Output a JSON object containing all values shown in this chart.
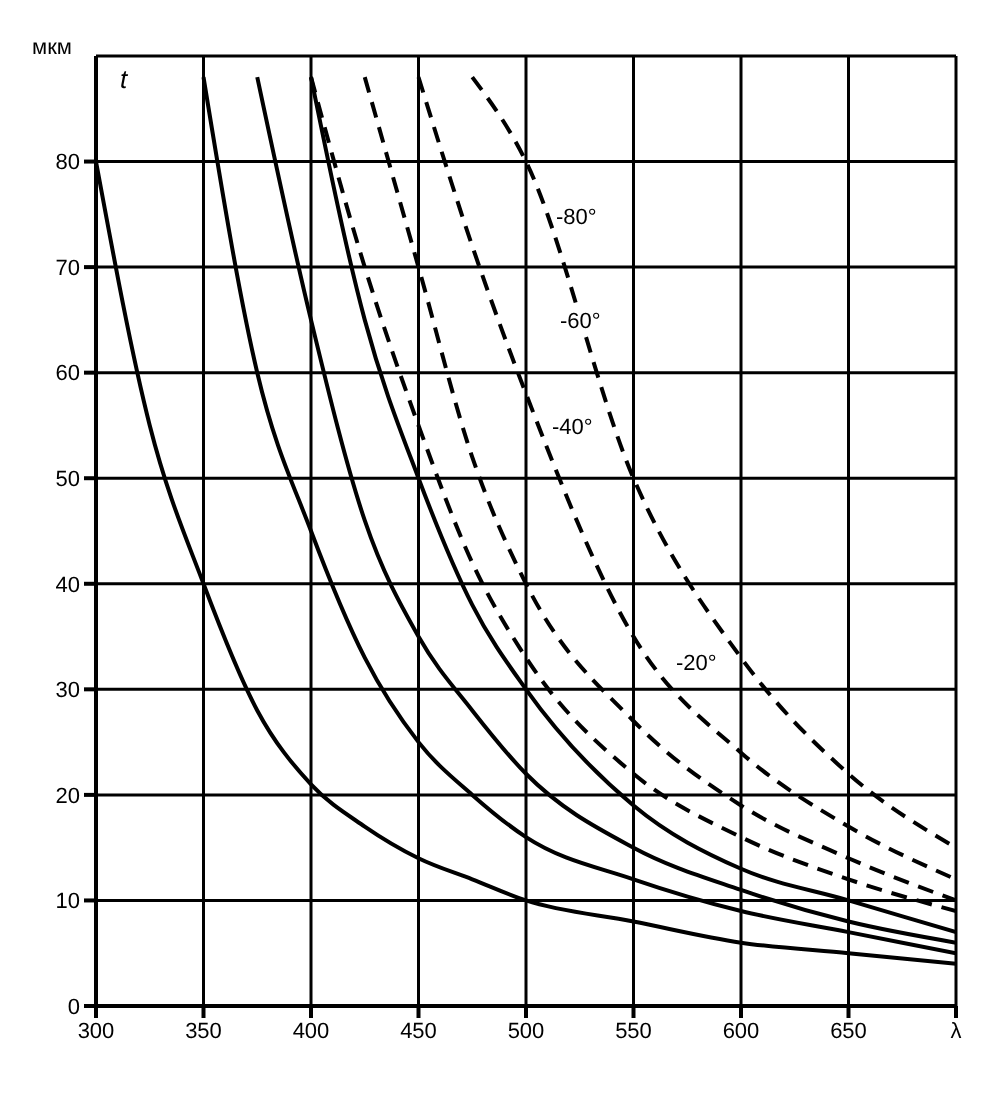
{
  "chart_data": {
    "type": "line",
    "ylabel": "мкм",
    "x": [
      300,
      325,
      350,
      375,
      400,
      425,
      450,
      475,
      500,
      550,
      600,
      650,
      700
    ],
    "xlim": [
      300,
      700
    ],
    "xticks": [
      300,
      350,
      400,
      450,
      500,
      550,
      600,
      650,
      {
        "value": 700,
        "label": "λ"
      }
    ],
    "ylim": [
      0,
      90
    ],
    "yticks": [
      0,
      10,
      20,
      30,
      40,
      50,
      60,
      70,
      80
    ],
    "grid": true,
    "legend": false,
    "marker": "none",
    "series": [
      {
        "color": "#000000",
        "line_style": "solid",
        "values": [
          80,
          55,
          40,
          28,
          21,
          17,
          14,
          12,
          10,
          8,
          6,
          5,
          4
        ]
      },
      {
        "color": "#000000",
        "line_style": "solid",
        "values": [
          null,
          null,
          88,
          60,
          45,
          33,
          25,
          20,
          16,
          12,
          9,
          7,
          5
        ]
      },
      {
        "color": "#000000",
        "line_style": "solid",
        "values": [
          null,
          null,
          null,
          88,
          65,
          46,
          35,
          28,
          22,
          15,
          11,
          8,
          6
        ]
      },
      {
        "color": "#000000",
        "line_style": "solid",
        "values": [
          null,
          null,
          null,
          null,
          88,
          65,
          50,
          38,
          30,
          19,
          13,
          10,
          7
        ]
      },
      {
        "color": "#000000",
        "line_style": "dashed",
        "values": [
          null,
          null,
          null,
          null,
          88,
          70,
          55,
          42,
          33,
          22,
          16,
          12,
          9
        ]
      },
      {
        "color": "#000000",
        "line_style": "dashed",
        "values": [
          null,
          null,
          null,
          null,
          null,
          88,
          70,
          52,
          40,
          27,
          19,
          14,
          10
        ]
      },
      {
        "color": "#000000",
        "line_style": "dashed",
        "values": [
          null,
          null,
          null,
          null,
          null,
          null,
          88,
          72,
          58,
          35,
          24,
          17,
          12
        ]
      },
      {
        "color": "#000000",
        "line_style": "dashed",
        "values": [
          null,
          null,
          null,
          null,
          null,
          null,
          null,
          88,
          80,
          50,
          33,
          22,
          15
        ]
      }
    ],
    "annotations": [
      "t",
      "-80°",
      "-60°",
      "-40°",
      "-20°"
    ]
  }
}
